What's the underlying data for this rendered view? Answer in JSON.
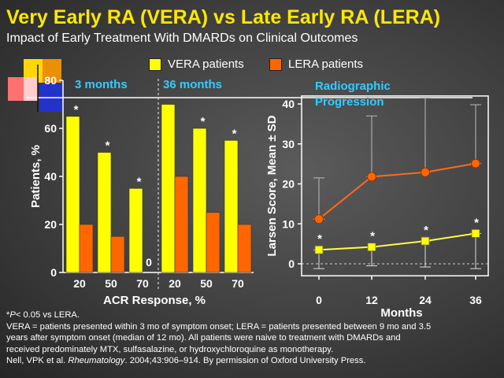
{
  "title": "Very Early RA (VERA) vs Late Early RA (LERA)",
  "subtitle": "Impact of Early Treatment With DMARDs on Clinical Outcomes",
  "legend": [
    {
      "label": "VERA patients",
      "color": "#ffff00"
    },
    {
      "label": "LERA patients",
      "color": "#ff6600"
    }
  ],
  "colors": {
    "vera": "#ffff00",
    "lera": "#ff6600",
    "line_vera": "#ffff40",
    "line_lera": "#ff6a1a",
    "accent_text": "#33ccff",
    "title": "#ffe800"
  },
  "chart_data": [
    {
      "type": "bar",
      "xlabel": "ACR Response, %",
      "ylabel": "Patients, %",
      "ylim": [
        0,
        80
      ],
      "yticks": [
        "0",
        "20",
        "40",
        "60",
        "80"
      ],
      "groups": [
        {
          "label": "3 months",
          "categories": [
            "20",
            "50",
            "70"
          ],
          "vera": [
            65,
            50,
            35
          ],
          "lera": [
            20,
            15,
            0
          ],
          "significance": [
            "*",
            "*",
            "*"
          ],
          "zero_label": "0"
        },
        {
          "label": "36 months",
          "categories": [
            "20",
            "50",
            "70"
          ],
          "vera": [
            70,
            60,
            55
          ],
          "lera": [
            40,
            25,
            20
          ],
          "significance": [
            "",
            "*",
            "*"
          ]
        }
      ],
      "series": [
        {
          "name": "VERA patients"
        },
        {
          "name": "LERA patients"
        }
      ]
    },
    {
      "type": "line",
      "title": "Radiographic Progression",
      "xlabel": "Months",
      "ylabel": "Larsen Score, Mean ± SD",
      "x": [
        0,
        12,
        24,
        36
      ],
      "xticks": [
        "0",
        "12",
        "24",
        "36"
      ],
      "ylim": [
        -3,
        42
      ],
      "yticks": [
        "0",
        "10",
        "20",
        "30",
        "40"
      ],
      "series": [
        {
          "name": "VERA patients",
          "values": [
            3.5,
            4.2,
            5.7,
            7.6
          ],
          "sd_upper": [
            3.5,
            4.2,
            5.7,
            7.6
          ],
          "sd_lower": [
            -1.2,
            -0.5,
            -0.8,
            -1.2
          ],
          "significance": [
            "*",
            "*",
            "*",
            "*"
          ]
        },
        {
          "name": "LERA patients",
          "values": [
            11.2,
            21.8,
            22.9,
            25.1
          ],
          "sd_upper": [
            21.5,
            37.0,
            41.5,
            39.8
          ],
          "sd_lower": [
            11.2,
            21.8,
            22.9,
            25.1
          ]
        }
      ]
    }
  ],
  "footnotes": {
    "significance_italic": "P",
    "significance_rest": "< 0.05 vs LERA.",
    "significance_star": "*",
    "definition_1": "VERA = patients presented within 3 mo of symptom onset; LERA = patients presented between 9 mo and 3.5",
    "definition_2": "years after symptom onset (median of 12 mo).  All patients were naive to treatment with DMARDs and",
    "definition_3": "received predominately MTX, sulfasalazine, or hydroxychloroquine as monotherapy.",
    "citation_authors": "Nell, VPK et al. ",
    "citation_journal": "Rheumatology",
    "citation_rest": ". 2004;43:906–914. By permission of Oxford University Press."
  }
}
